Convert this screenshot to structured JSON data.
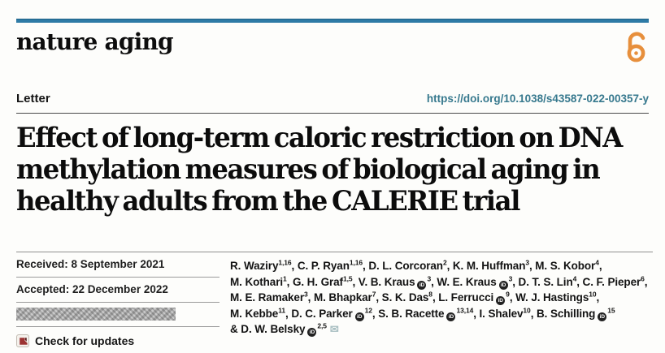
{
  "journal": {
    "name": "nature aging"
  },
  "article": {
    "type_label": "Letter",
    "doi": "https://doi.org/10.1038/s43587-022-00357-y",
    "title_lines": [
      "Effect of long-term caloric restriction on DNA",
      "methylation measures of biological aging in",
      "healthy adults from the CALERIE trial"
    ]
  },
  "dates": {
    "received": "Received: 8 September 2021",
    "accepted": "Accepted: 22 December 2022",
    "published": "[redacted]"
  },
  "check_for_updates": {
    "label": "Check for updates"
  },
  "icons": {
    "orcid_label": "iD",
    "mail_glyph": "✉"
  },
  "colors": {
    "top_bar_blue": "#2e7ba6",
    "doi_teal": "#37798e",
    "open_access_orange": "#e78f3c",
    "crossmark_red": "#9c3332",
    "text_black": "#131313",
    "rule_gray": "#9a9a9a"
  },
  "authors": {
    "lines": [
      [
        {
          "t": "R. Waziry"
        },
        {
          "sup": "1,16"
        },
        {
          "t": ", C. P. Ryan"
        },
        {
          "sup": "1,16"
        },
        {
          "t": ", D. L. Corcoran"
        },
        {
          "sup": "2"
        },
        {
          "t": ", K. M. Huffman"
        },
        {
          "sup": "3"
        },
        {
          "t": ", M. S. Kobor"
        },
        {
          "sup": "4"
        },
        {
          "t": ","
        }
      ],
      [
        {
          "t": "M. Kothari"
        },
        {
          "sup": "1"
        },
        {
          "t": ", G. H. Graf"
        },
        {
          "sup": "1,5"
        },
        {
          "t": ", V. B. Kraus"
        },
        {
          "orcid": true
        },
        {
          "sup": "3"
        },
        {
          "t": ", W. E. Kraus"
        },
        {
          "orcid": true
        },
        {
          "sup": "3"
        },
        {
          "t": ", D. T. S. Lin"
        },
        {
          "sup": "4"
        },
        {
          "t": ", C. F. Pieper"
        },
        {
          "sup": "6"
        },
        {
          "t": ","
        }
      ],
      [
        {
          "t": "M. E. Ramaker"
        },
        {
          "sup": "3"
        },
        {
          "t": ", M. Bhapkar"
        },
        {
          "sup": "7"
        },
        {
          "t": ", S. K. Das"
        },
        {
          "sup": "8"
        },
        {
          "t": ", L. Ferrucci"
        },
        {
          "orcid": true
        },
        {
          "sup": "9"
        },
        {
          "t": ", W. J. Hastings"
        },
        {
          "sup": "10"
        },
        {
          "t": ","
        }
      ],
      [
        {
          "t": "M. Kebbe"
        },
        {
          "sup": "11"
        },
        {
          "t": ", D. C. Parker"
        },
        {
          "orcid": true
        },
        {
          "sup": "12"
        },
        {
          "t": ", S. B. Racette"
        },
        {
          "orcid": true
        },
        {
          "sup": "13,14"
        },
        {
          "t": ", I. Shalev"
        },
        {
          "sup": "10"
        },
        {
          "t": ", B. Schilling"
        },
        {
          "orcid": true
        },
        {
          "sup": "15"
        }
      ],
      [
        {
          "t": "& D. W. Belsky"
        },
        {
          "orcid": true
        },
        {
          "sup": "2,5"
        },
        {
          "mail": true
        }
      ]
    ]
  }
}
